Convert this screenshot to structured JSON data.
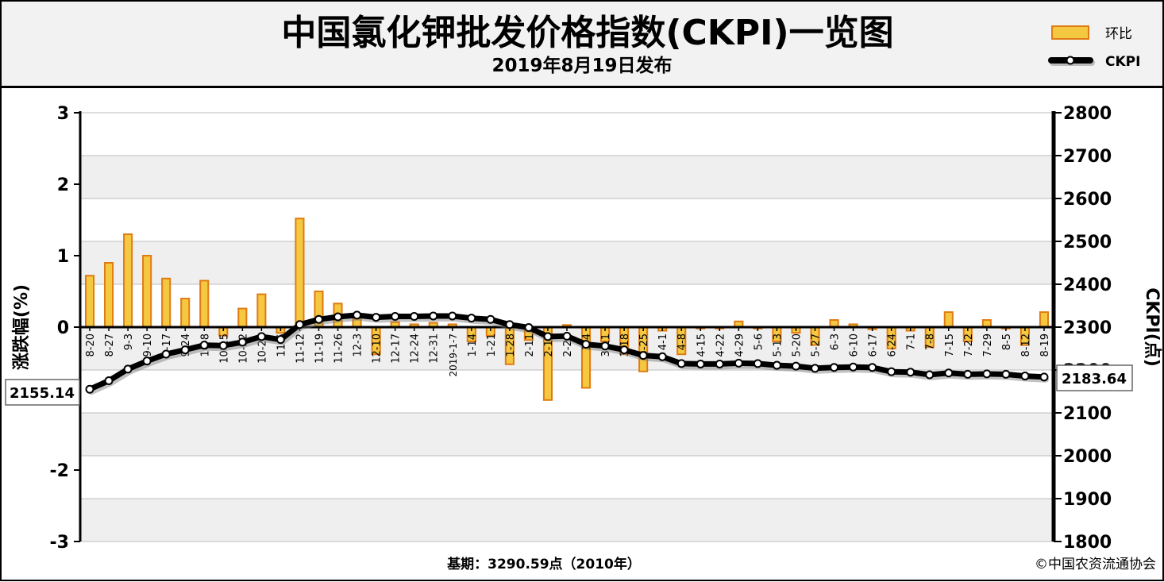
{
  "header": {
    "title": "中国氯化钾批发价格指数(CKPI)一览图",
    "subtitle": "2019年8月19日发布"
  },
  "legend": {
    "bar_label": "环比",
    "line_label": "CKPI"
  },
  "footer": {
    "base": "基期：3290.59点（2010年）",
    "copyright": "©中国农资流通协会"
  },
  "colors": {
    "bar_fill": "#f5c842",
    "bar_stroke": "#e07b12",
    "line": "#000000",
    "marker_fill": "#ffffff",
    "band": "#efefef",
    "grid": "#bdbdbd"
  },
  "chart_data": {
    "type": "bar+line",
    "x": [
      "8-20",
      "8-27",
      "9-3",
      "9-10",
      "9-17",
      "9-24",
      "10-8",
      "10-15",
      "10-22",
      "10-29",
      "11-5",
      "11-12",
      "11-19",
      "11-26",
      "12-3",
      "12-10",
      "12-17",
      "12-24",
      "12-31",
      "2019-1-7",
      "1-14",
      "1-21",
      "1-28",
      "2-11",
      "2-18",
      "2-25",
      "3-4",
      "3-11",
      "3-18",
      "3-25",
      "4-1",
      "4-8",
      "4-15",
      "4-22",
      "4-29",
      "5-6",
      "5-13",
      "5-20",
      "5-27",
      "6-3",
      "6-10",
      "6-17",
      "6-24",
      "7-1",
      "7-8",
      "7-15",
      "7-22",
      "7-29",
      "8-5",
      "8-12",
      "8-19"
    ],
    "xtick_labels": [
      "8-20",
      "8-27",
      "9-3",
      "9-10",
      "9-17",
      "9-24",
      "10-8",
      "10-15",
      "10-22",
      "10-29",
      "11-5",
      "11-12",
      "11-19",
      "11-26",
      "12-3",
      "12-10",
      "12-17",
      "12-24",
      "12-31",
      "2019-1-7",
      "1-14",
      "1-21",
      "1-28",
      "2-11",
      "2-18",
      "2-25",
      "3-4",
      "3-11",
      "3-18",
      "3-25",
      "4-1",
      "4-8",
      "4-15",
      "4-22",
      "4-29",
      "5-6",
      "5-13",
      "5-20",
      "5-27",
      "6-3",
      "6-10",
      "6-17",
      "6-24",
      "7-1",
      "7-8",
      "7-15",
      "7-22",
      "7-29",
      "8-5",
      "8-12",
      "8-19"
    ],
    "series": [
      {
        "name": "环比",
        "kind": "bar",
        "axis": "left",
        "values": [
          0.72,
          0.9,
          1.3,
          1.0,
          0.68,
          0.4,
          0.65,
          -0.12,
          0.26,
          0.46,
          -0.08,
          1.52,
          0.5,
          0.33,
          0.12,
          -0.38,
          0.07,
          0.04,
          0.06,
          0.04,
          -0.2,
          -0.12,
          -0.52,
          -0.18,
          -1.02,
          0.03,
          -0.85,
          -0.2,
          -0.38,
          -0.62,
          -0.05,
          -0.38,
          -0.02,
          -0.02,
          0.08,
          -0.02,
          -0.2,
          -0.08,
          -0.25,
          0.1,
          0.04,
          -0.03,
          -0.3,
          -0.05,
          -0.28,
          0.21,
          -0.2,
          0.1,
          -0.02,
          -0.25,
          0.21
        ]
      },
      {
        "name": "CKPI",
        "kind": "line",
        "axis": "right",
        "values": [
          2155.14,
          2175,
          2202,
          2221,
          2237,
          2247,
          2258,
          2257,
          2265,
          2278,
          2271,
          2306,
          2318,
          2324,
          2328,
          2323,
          2325,
          2325,
          2326,
          2326,
          2321,
          2318,
          2306,
          2299,
          2278,
          2279,
          2260,
          2256,
          2247,
          2234,
          2231,
          2215,
          2214,
          2214,
          2216,
          2215,
          2211,
          2209,
          2204,
          2206,
          2207,
          2206,
          2196,
          2195,
          2189,
          2193,
          2190,
          2191,
          2190,
          2186,
          2183.64
        ]
      }
    ],
    "y_left": {
      "label": "涨跌幅(%)",
      "min": -3,
      "max": 3,
      "ticks": [
        "3",
        "2",
        "1",
        "0",
        "-1",
        "-2",
        "-3"
      ]
    },
    "y_right": {
      "label": "CKPI(点)",
      "min": 1800,
      "max": 2800,
      "ticks": [
        "2800",
        "2700",
        "2600",
        "2500",
        "2400",
        "2300",
        "2200",
        "2100",
        "2000",
        "1900",
        "1800"
      ]
    },
    "annotations": {
      "first_value": "2155.14",
      "last_value": "2183.64"
    },
    "legend_position": "top-right",
    "grid": true
  }
}
